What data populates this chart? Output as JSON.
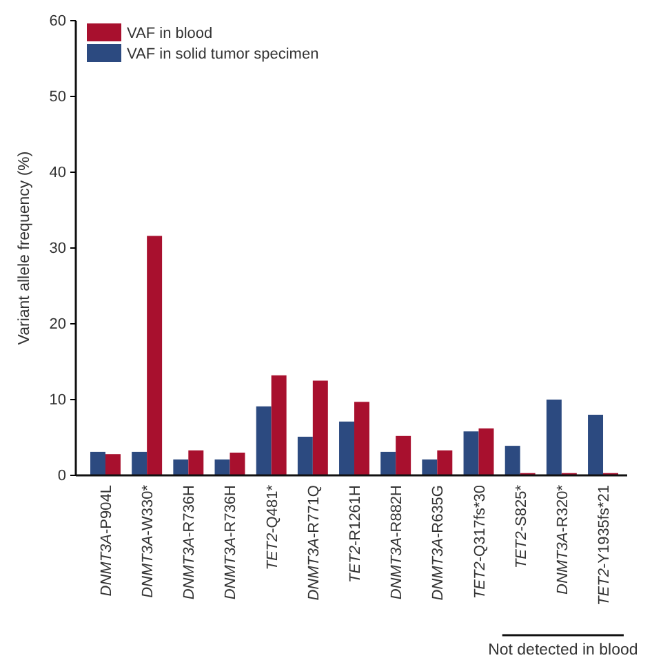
{
  "chart_data": {
    "type": "bar",
    "ylabel": "Variant allele frequency (%)",
    "categories": [
      "DNMT3A-P904L",
      "DNMT3A-W330*",
      "DNMT3A-R736H",
      "DNMT3A-R736H",
      "TET2-Q481*",
      "DNMT3A-R771Q",
      "TET2-R1261H",
      "DNMT3A-R882H",
      "DNMT3A-R635G",
      "TET2-Q317fs*30",
      "TET2-S825*",
      "DNMT3A-R320*",
      "TET2-Y1935fs*21"
    ],
    "series": [
      {
        "name": "VAF in solid tumor specimen",
        "color": "#2c4a80",
        "values": [
          3.1,
          3.1,
          2.1,
          2.1,
          9.1,
          5.1,
          7.1,
          3.1,
          2.1,
          5.8,
          3.9,
          10.0,
          8.0
        ]
      },
      {
        "name": "VAF in blood",
        "color": "#a8102e",
        "values": [
          2.8,
          31.6,
          3.3,
          3.0,
          13.2,
          12.5,
          9.7,
          5.2,
          3.3,
          6.2,
          0.3,
          0.3,
          0.3
        ]
      }
    ],
    "ylim": [
      0,
      60
    ],
    "yticks": [
      0,
      10,
      20,
      30,
      40,
      50,
      60
    ],
    "legend": "top left",
    "annotations": [
      "Not detected in blood"
    ]
  }
}
